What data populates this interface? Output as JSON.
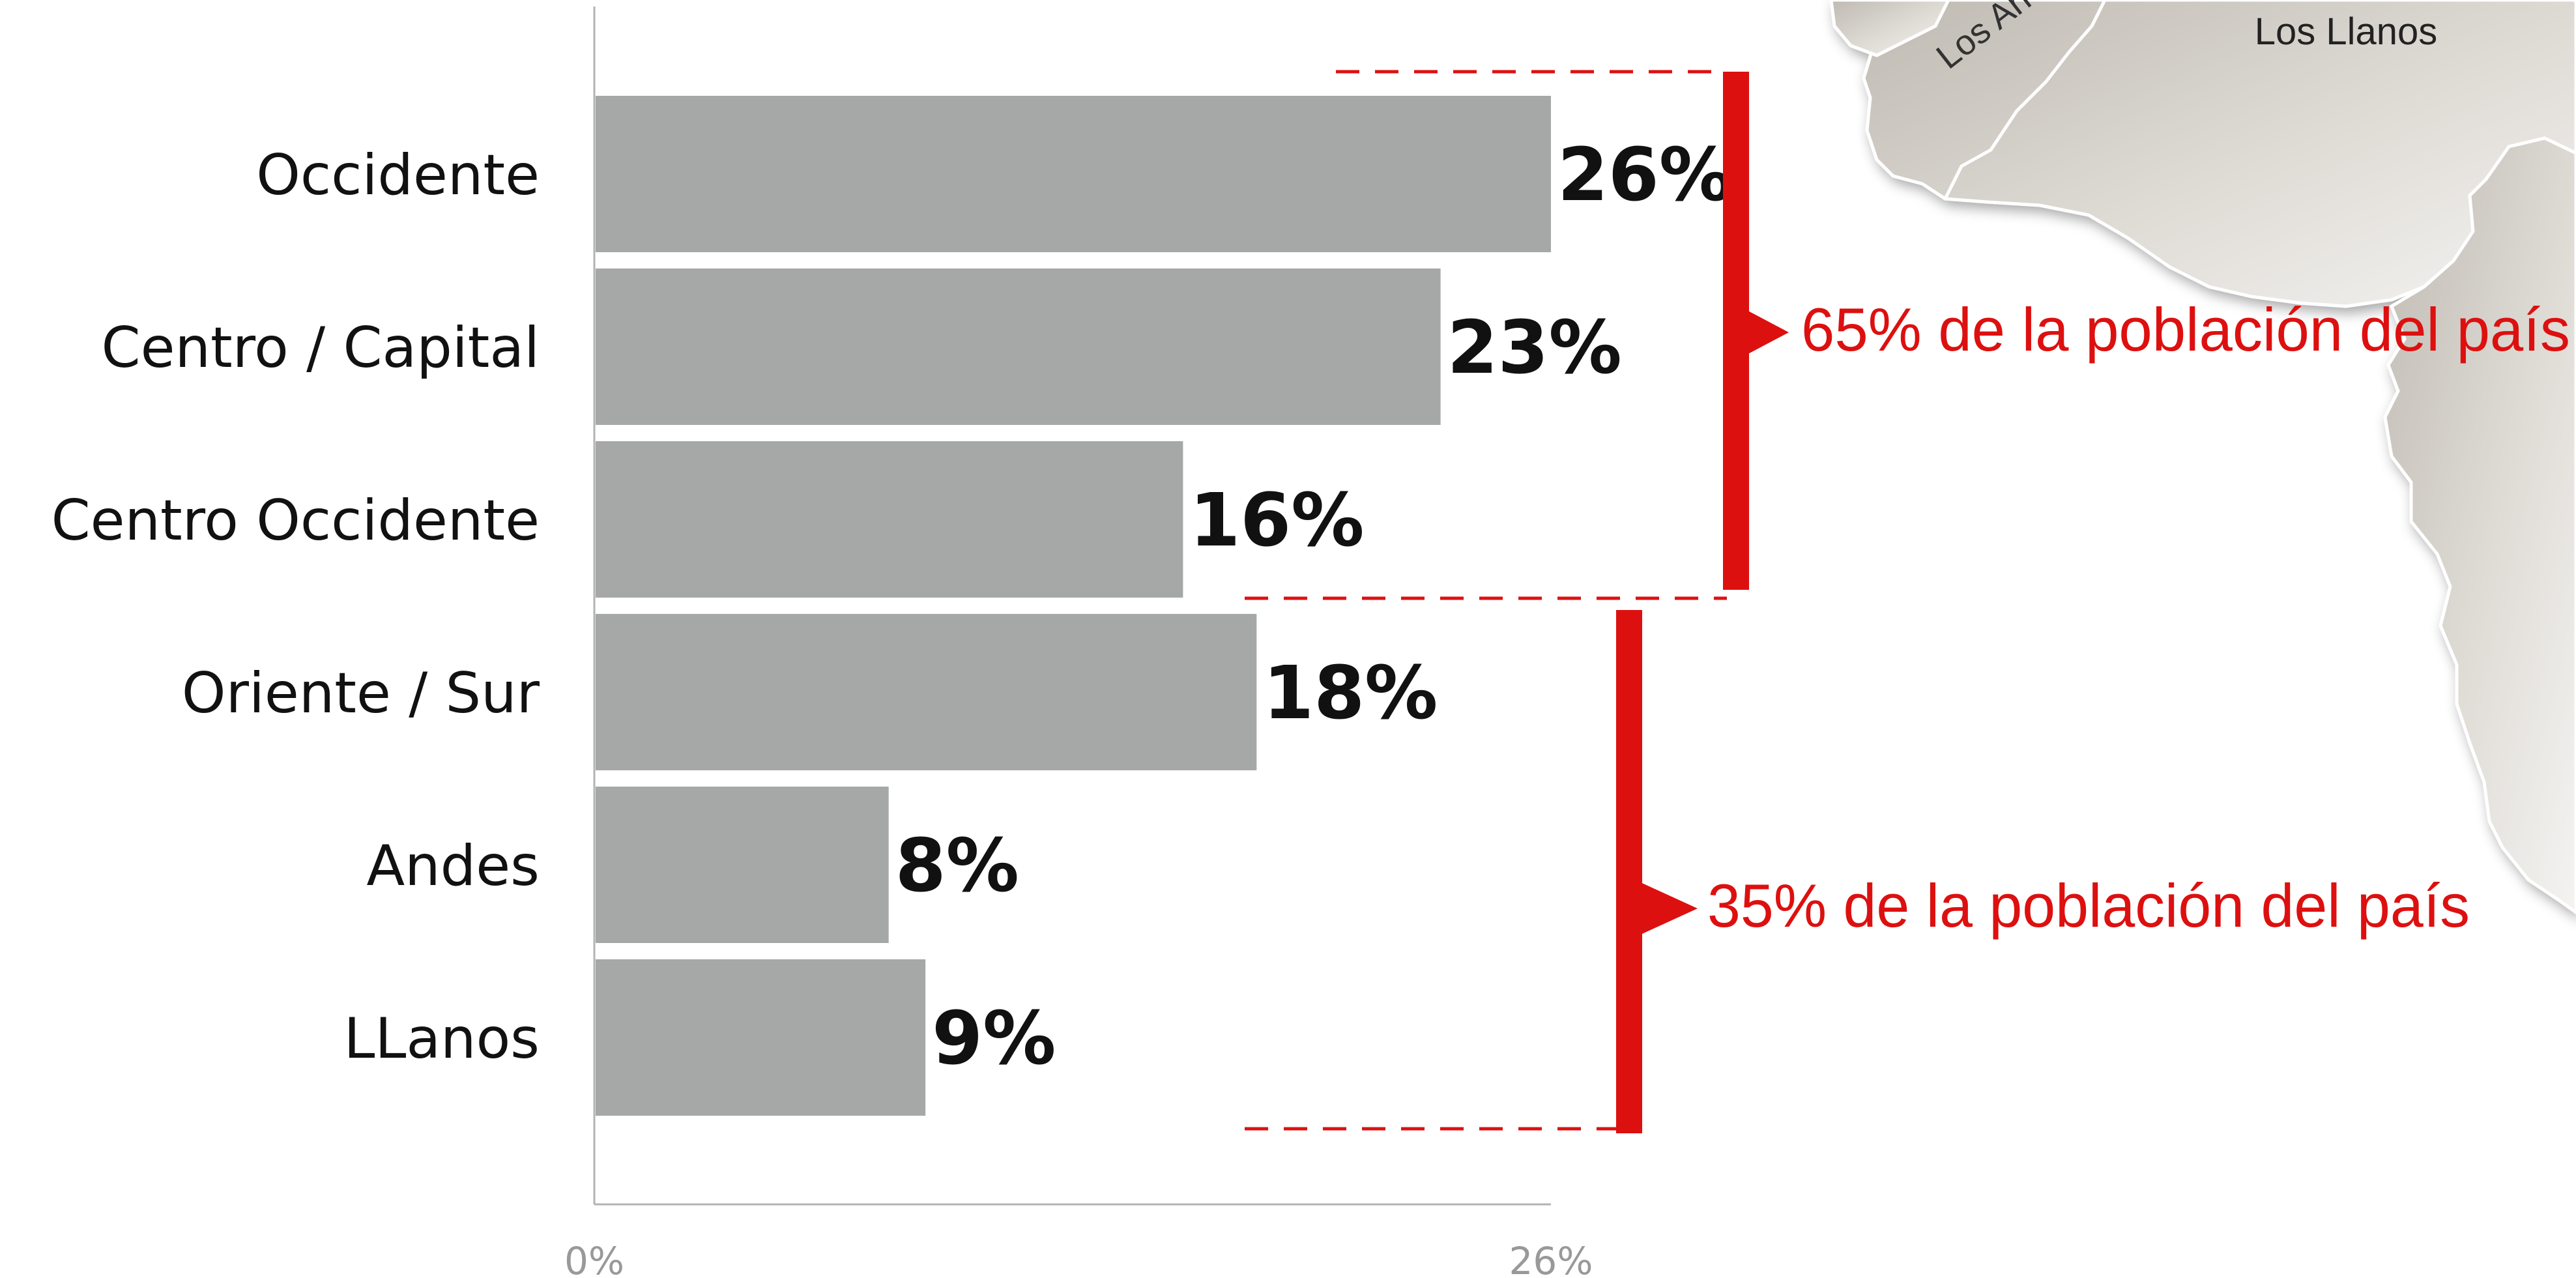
{
  "chart_data": {
    "type": "bar",
    "orientation": "horizontal",
    "categories": [
      "Occidente",
      "Centro / Capital",
      "Centro Occidente",
      "Oriente / Sur",
      "Andes",
      "LLanos"
    ],
    "values": [
      26,
      23,
      16,
      18,
      8,
      9
    ],
    "value_labels": [
      "26%",
      "23%",
      "16%",
      "18%",
      "8%",
      "9%"
    ],
    "x_ticks": [
      {
        "value": 0,
        "label": "0%"
      },
      {
        "value": 26,
        "label": "26%"
      }
    ],
    "xlim": [
      0,
      26
    ],
    "grid": false,
    "bar_color": "#a5a8a6",
    "annotations": [
      {
        "label": "65% de la población del país",
        "groups": [
          "Occidente",
          "Centro / Capital",
          "Centro Occidente"
        ],
        "color": "#dd1010"
      },
      {
        "label": "35% de la población del país",
        "groups": [
          "Oriente / Sur",
          "Andes",
          "LLanos"
        ],
        "color": "#dd1010"
      }
    ]
  },
  "map": {
    "labels": [
      "Los Llanos",
      "Los An"
    ],
    "fill": "#dedcd6",
    "stroke": "#ffffff"
  },
  "colors": {
    "text": "#111111",
    "axis": "#b3b3b3",
    "tick_text": "#999999",
    "accent": "#dd1010"
  }
}
